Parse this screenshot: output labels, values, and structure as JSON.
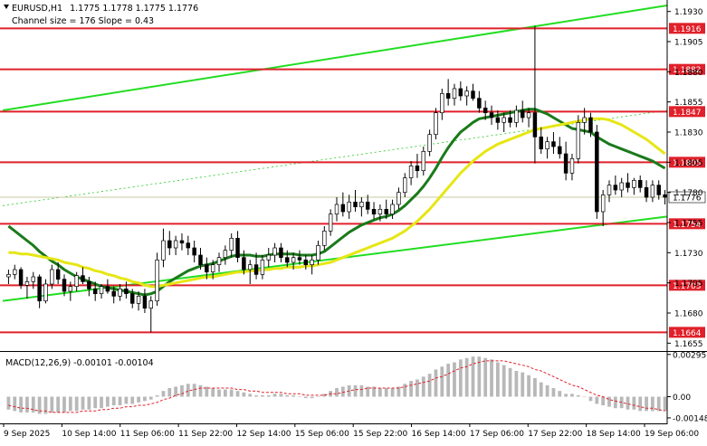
{
  "chart_data": {
    "type": "candlestick",
    "header": {
      "title": "EURUSD,H1",
      "ohlc": "1.1775 1.1778 1.1775 1.1776",
      "channel_info": "Channel size = 176 Slope = 0.43"
    },
    "price_axis": {
      "range": [
        1.165,
        1.1938
      ],
      "ticks": [
        "1.1930",
        "1.1905",
        "1.1880",
        "1.1855",
        "1.1830",
        "1.1805",
        "1.1780",
        "1.1755",
        "1.1730",
        "1.1705",
        "1.1680",
        "1.1655"
      ]
    },
    "current_price": {
      "label": "1.1776",
      "value": 1.1776
    },
    "levels": [
      {
        "label": "1.1916",
        "value": 1.1916
      },
      {
        "label": "1.1882",
        "value": 1.1882
      },
      {
        "label": "1.1847",
        "value": 1.1847
      },
      {
        "label": "1.1805",
        "value": 1.1805
      },
      {
        "label": "1.1754",
        "value": 1.1754
      },
      {
        "label": "1.1703",
        "value": 1.1703
      },
      {
        "label": "1.1664",
        "value": 1.1664
      }
    ],
    "time_labels": [
      "9 Sep 2025",
      "10 Sep 14:00",
      "11 Sep 06:00",
      "11 Sep 22:00",
      "12 Sep 14:00",
      "15 Sep 06:00",
      "15 Sep 22:00",
      "16 Sep 14:00",
      "17 Sep 06:00",
      "17 Sep 22:00",
      "18 Sep 14:00",
      "19 Sep 06:00"
    ],
    "candles": [
      [
        1.171,
        1.1716,
        1.1704,
        1.1712
      ],
      [
        1.1712,
        1.172,
        1.1708,
        1.1716
      ],
      [
        1.1716,
        1.1718,
        1.17,
        1.1703
      ],
      [
        1.1703,
        1.171,
        1.1692,
        1.1706
      ],
      [
        1.1706,
        1.1714,
        1.17,
        1.171
      ],
      [
        1.171,
        1.1712,
        1.1684,
        1.169
      ],
      [
        1.169,
        1.1708,
        1.1688,
        1.1704
      ],
      [
        1.1704,
        1.172,
        1.17,
        1.1716
      ],
      [
        1.1716,
        1.1722,
        1.1704,
        1.1708
      ],
      [
        1.1708,
        1.1712,
        1.1694,
        1.1698
      ],
      [
        1.1698,
        1.1706,
        1.169,
        1.1702
      ],
      [
        1.1702,
        1.1714,
        1.1698,
        1.1711
      ],
      [
        1.1711,
        1.1718,
        1.1704,
        1.1706
      ],
      [
        1.1706,
        1.171,
        1.1694,
        1.17
      ],
      [
        1.17,
        1.1706,
        1.169,
        1.1696
      ],
      [
        1.1696,
        1.1704,
        1.1692,
        1.1702
      ],
      [
        1.1702,
        1.1708,
        1.1696,
        1.1698
      ],
      [
        1.1698,
        1.1702,
        1.1688,
        1.1694
      ],
      [
        1.1694,
        1.1704,
        1.169,
        1.17
      ],
      [
        1.17,
        1.1706,
        1.1692,
        1.1696
      ],
      [
        1.1696,
        1.17,
        1.1684,
        1.1688
      ],
      [
        1.1688,
        1.1698,
        1.1682,
        1.1694
      ],
      [
        1.1694,
        1.17,
        1.168,
        1.1684
      ],
      [
        1.1684,
        1.1694,
        1.1664,
        1.169
      ],
      [
        1.169,
        1.173,
        1.1686,
        1.1724
      ],
      [
        1.1724,
        1.175,
        1.1718,
        1.174
      ],
      [
        1.174,
        1.1748,
        1.1728,
        1.1734
      ],
      [
        1.1734,
        1.1744,
        1.1728,
        1.174
      ],
      [
        1.174,
        1.1746,
        1.1732,
        1.1738
      ],
      [
        1.1738,
        1.1744,
        1.1728,
        1.1734
      ],
      [
        1.1734,
        1.174,
        1.1722,
        1.1728
      ],
      [
        1.1728,
        1.1734,
        1.1716,
        1.172
      ],
      [
        1.172,
        1.1726,
        1.1708,
        1.1714
      ],
      [
        1.1714,
        1.1724,
        1.1708,
        1.172
      ],
      [
        1.172,
        1.173,
        1.1714,
        1.1726
      ],
      [
        1.1726,
        1.1736,
        1.172,
        1.1732
      ],
      [
        1.1732,
        1.1746,
        1.1726,
        1.1742
      ],
      [
        1.1742,
        1.1748,
        1.1722,
        1.1726
      ],
      [
        1.1726,
        1.1732,
        1.1712,
        1.1716
      ],
      [
        1.1716,
        1.1724,
        1.1704,
        1.172
      ],
      [
        1.172,
        1.173,
        1.1708,
        1.1712
      ],
      [
        1.1712,
        1.1728,
        1.1708,
        1.1724
      ],
      [
        1.1724,
        1.1734,
        1.1718,
        1.1728
      ],
      [
        1.1728,
        1.1738,
        1.1722,
        1.1734
      ],
      [
        1.1734,
        1.1738,
        1.1722,
        1.1726
      ],
      [
        1.1726,
        1.1732,
        1.1718,
        1.1722
      ],
      [
        1.1722,
        1.173,
        1.1716,
        1.1726
      ],
      [
        1.1726,
        1.1732,
        1.172,
        1.1724
      ],
      [
        1.1724,
        1.1728,
        1.1716,
        1.172
      ],
      [
        1.172,
        1.1728,
        1.1712,
        1.1724
      ],
      [
        1.1724,
        1.174,
        1.172,
        1.1736
      ],
      [
        1.1736,
        1.1752,
        1.1732,
        1.1748
      ],
      [
        1.1748,
        1.1766,
        1.1744,
        1.1762
      ],
      [
        1.1762,
        1.1776,
        1.1756,
        1.177
      ],
      [
        1.177,
        1.178,
        1.176,
        1.1764
      ],
      [
        1.1764,
        1.1778,
        1.1758,
        1.1772
      ],
      [
        1.1772,
        1.1782,
        1.1764,
        1.1768
      ],
      [
        1.1768,
        1.1776,
        1.176,
        1.1772
      ],
      [
        1.1772,
        1.1778,
        1.1762,
        1.1766
      ],
      [
        1.1766,
        1.1772,
        1.1758,
        1.1762
      ],
      [
        1.1762,
        1.177,
        1.1756,
        1.1766
      ],
      [
        1.1766,
        1.1774,
        1.1758,
        1.1762
      ],
      [
        1.1762,
        1.1774,
        1.1758,
        1.177
      ],
      [
        1.177,
        1.1784,
        1.1766,
        1.178
      ],
      [
        1.178,
        1.1796,
        1.1776,
        1.1792
      ],
      [
        1.1792,
        1.1806,
        1.1786,
        1.1802
      ],
      [
        1.1802,
        1.1812,
        1.1792,
        1.1798
      ],
      [
        1.1798,
        1.1818,
        1.1794,
        1.1814
      ],
      [
        1.1814,
        1.1832,
        1.181,
        1.1828
      ],
      [
        1.1828,
        1.185,
        1.1824,
        1.1846
      ],
      [
        1.1846,
        1.1866,
        1.184,
        1.1862
      ],
      [
        1.1862,
        1.1874,
        1.1852,
        1.1858
      ],
      [
        1.1858,
        1.187,
        1.1852,
        1.1866
      ],
      [
        1.1866,
        1.1872,
        1.1856,
        1.186
      ],
      [
        1.186,
        1.1868,
        1.1852,
        1.1864
      ],
      [
        1.1864,
        1.187,
        1.1856,
        1.1858
      ],
      [
        1.1858,
        1.1864,
        1.1846,
        1.185
      ],
      [
        1.185,
        1.1856,
        1.184,
        1.1846
      ],
      [
        1.1846,
        1.1852,
        1.1836,
        1.1842
      ],
      [
        1.1842,
        1.1848,
        1.1832,
        1.1838
      ],
      [
        1.1838,
        1.1846,
        1.183,
        1.1842
      ],
      [
        1.1842,
        1.1848,
        1.1834,
        1.1838
      ],
      [
        1.1838,
        1.1852,
        1.1834,
        1.1848
      ],
      [
        1.1848,
        1.1856,
        1.1838,
        1.1842
      ],
      [
        1.1842,
        1.185,
        1.1834,
        1.1846
      ],
      [
        1.1846,
        1.1918,
        1.1804,
        1.1826
      ],
      [
        1.1826,
        1.1834,
        1.1812,
        1.1816
      ],
      [
        1.1816,
        1.1826,
        1.1808,
        1.1822
      ],
      [
        1.1822,
        1.183,
        1.1812,
        1.1818
      ],
      [
        1.1818,
        1.1826,
        1.1808,
        1.1812
      ],
      [
        1.1812,
        1.1822,
        1.179,
        1.1796
      ],
      [
        1.1796,
        1.1812,
        1.179,
        1.1808
      ],
      [
        1.1808,
        1.1844,
        1.1804,
        1.1838
      ],
      [
        1.1838,
        1.185,
        1.1828,
        1.1842
      ],
      [
        1.1842,
        1.1846,
        1.1826,
        1.183
      ],
      [
        1.183,
        1.1836,
        1.1758,
        1.1764
      ],
      [
        1.1764,
        1.1782,
        1.1752,
        1.1778
      ],
      [
        1.1778,
        1.179,
        1.1772,
        1.1786
      ],
      [
        1.1786,
        1.1794,
        1.1778,
        1.1782
      ],
      [
        1.1782,
        1.1792,
        1.1776,
        1.1788
      ],
      [
        1.1788,
        1.1796,
        1.178,
        1.1784
      ],
      [
        1.1784,
        1.1792,
        1.1778,
        1.179
      ],
      [
        1.179,
        1.1794,
        1.178,
        1.1784
      ],
      [
        1.1784,
        1.179,
        1.1772,
        1.1776
      ],
      [
        1.1776,
        1.179,
        1.1772,
        1.1786
      ],
      [
        1.1786,
        1.179,
        1.1774,
        1.1778
      ],
      [
        1.1778,
        1.1782,
        1.177,
        1.1776
      ]
    ],
    "series": [
      {
        "name": "",
        "color": "#1a7a1a",
        "values": [
          1.1752,
          1.1748,
          1.1744,
          1.174,
          1.1736,
          1.1731,
          1.1727,
          1.1723,
          1.172,
          1.1716,
          1.1713,
          1.171,
          1.1708,
          1.1706,
          1.1704,
          1.1702,
          1.1701,
          1.17,
          1.1699,
          1.1698,
          1.1697,
          1.1696,
          1.1695,
          1.1696,
          1.1698,
          1.1702,
          1.1706,
          1.1709,
          1.1712,
          1.1715,
          1.1717,
          1.1719,
          1.172,
          1.1721,
          1.1723,
          1.1725,
          1.1727,
          1.1728,
          1.1728,
          1.1728,
          1.1727,
          1.1727,
          1.1728,
          1.1729,
          1.1729,
          1.1729,
          1.1729,
          1.1728,
          1.1728,
          1.1728,
          1.1729,
          1.1731,
          1.1735,
          1.1739,
          1.1743,
          1.1747,
          1.175,
          1.1753,
          1.1755,
          1.1757,
          1.1759,
          1.176,
          1.1762,
          1.1765,
          1.1769,
          1.1774,
          1.1779,
          1.1785,
          1.1792,
          1.18,
          1.1809,
          1.1817,
          1.1824,
          1.183,
          1.1834,
          1.1838,
          1.1841,
          1.1842,
          1.1843,
          1.1844,
          1.1845,
          1.1846,
          1.1847,
          1.1848,
          1.1849,
          1.1849,
          1.1847,
          1.1845,
          1.1842,
          1.1839,
          1.1836,
          1.1833,
          1.1832,
          1.1831,
          1.183,
          1.1826,
          1.1823,
          1.182,
          1.1818,
          1.1816,
          1.1814,
          1.1812,
          1.181,
          1.1808,
          1.1806,
          1.1803,
          1.18
        ]
      },
      {
        "name": "",
        "color": "#e6e614",
        "values": [
          1.173,
          1.173,
          1.1729,
          1.1729,
          1.1728,
          1.1727,
          1.1726,
          1.1725,
          1.1724,
          1.1722,
          1.1721,
          1.172,
          1.1718,
          1.1717,
          1.1715,
          1.1714,
          1.1712,
          1.1711,
          1.1709,
          1.1708,
          1.1706,
          1.1705,
          1.1703,
          1.1702,
          1.1702,
          1.1703,
          1.1704,
          1.1705,
          1.1706,
          1.1707,
          1.1708,
          1.1709,
          1.171,
          1.171,
          1.1711,
          1.1712,
          1.1713,
          1.1714,
          1.1714,
          1.1715,
          1.1715,
          1.1716,
          1.1716,
          1.1717,
          1.1717,
          1.1718,
          1.1718,
          1.1718,
          1.1719,
          1.1719,
          1.172,
          1.1721,
          1.1722,
          1.1724,
          1.1726,
          1.1728,
          1.173,
          1.1732,
          1.1734,
          1.1736,
          1.1738,
          1.174,
          1.1742,
          1.1745,
          1.1748,
          1.1752,
          1.1756,
          1.1761,
          1.1766,
          1.1772,
          1.1778,
          1.1784,
          1.179,
          1.1796,
          1.1801,
          1.1806,
          1.181,
          1.1814,
          1.1817,
          1.182,
          1.1822,
          1.1824,
          1.1826,
          1.1828,
          1.183,
          1.1832,
          1.1833,
          1.1834,
          1.1835,
          1.1836,
          1.1837,
          1.1838,
          1.1839,
          1.184,
          1.1841,
          1.1841,
          1.1841,
          1.184,
          1.1838,
          1.1836,
          1.1833,
          1.183,
          1.1827,
          1.1824,
          1.182,
          1.1816,
          1.1812
        ]
      }
    ],
    "macd": {
      "label": "MACD(12,26,9) -0.00101 -0.00104",
      "range": [
        -0.0018,
        0.003
      ],
      "ticks": [
        "0.00295",
        "0.00",
        "-0.00148"
      ],
      "histogram": [
        -0.0009,
        -0.001,
        -0.0011,
        -0.0011,
        -0.0011,
        -0.0012,
        -0.0012,
        -0.0011,
        -0.0011,
        -0.0011,
        -0.001,
        -0.001,
        -0.0009,
        -0.0009,
        -0.0008,
        -0.0008,
        -0.0007,
        -0.0006,
        -0.0006,
        -0.0005,
        -0.0005,
        -0.0004,
        -0.0003,
        -0.0002,
        0.0001,
        0.0004,
        0.0006,
        0.0007,
        0.0008,
        0.0009,
        0.0009,
        0.0008,
        0.0007,
        0.0006,
        0.0005,
        0.0005,
        0.0005,
        0.0004,
        0.0003,
        0.0002,
        0.0001,
        0.0001,
        0.0001,
        0.0002,
        0.0002,
        0.0001,
        0.0001,
        0.0,
        -0.0001,
        -0.0001,
        0.0,
        0.0002,
        0.0004,
        0.0006,
        0.0007,
        0.0008,
        0.0008,
        0.0008,
        0.0007,
        0.0007,
        0.0006,
        0.0006,
        0.0006,
        0.0007,
        0.0009,
        0.0011,
        0.0012,
        0.0014,
        0.0016,
        0.0019,
        0.0021,
        0.0023,
        0.0024,
        0.0026,
        0.0027,
        0.0028,
        0.0028,
        0.0027,
        0.0026,
        0.0024,
        0.0022,
        0.002,
        0.0018,
        0.0017,
        0.0015,
        0.0013,
        0.001,
        0.0008,
        0.0006,
        0.0004,
        0.0002,
        0.0002,
        0.0001,
        0.0,
        -0.0003,
        -0.0005,
        -0.0006,
        -0.0007,
        -0.0008,
        -0.0008,
        -0.0009,
        -0.0009,
        -0.001,
        -0.001,
        -0.001,
        -0.001,
        -0.001
      ],
      "signal": [
        -0.0006,
        -0.0007,
        -0.0008,
        -0.0008,
        -0.0009,
        -0.001,
        -0.001,
        -0.0011,
        -0.0011,
        -0.0011,
        -0.0011,
        -0.0011,
        -0.001,
        -0.001,
        -0.001,
        -0.0009,
        -0.0009,
        -0.0008,
        -0.0008,
        -0.0007,
        -0.0007,
        -0.0006,
        -0.0006,
        -0.0005,
        -0.0004,
        -0.0002,
        -0.0001,
        0.0001,
        0.0002,
        0.0004,
        0.0005,
        0.0006,
        0.0006,
        0.0006,
        0.0006,
        0.0006,
        0.0006,
        0.0005,
        0.0005,
        0.0004,
        0.0004,
        0.0003,
        0.0003,
        0.0003,
        0.0003,
        0.0002,
        0.0002,
        0.0002,
        0.0001,
        0.0001,
        0.0001,
        0.0001,
        0.0002,
        0.0002,
        0.0003,
        0.0004,
        0.0005,
        0.0005,
        0.0006,
        0.0006,
        0.0006,
        0.0006,
        0.0006,
        0.0006,
        0.0007,
        0.0008,
        0.0009,
        0.001,
        0.0011,
        0.0013,
        0.0014,
        0.0016,
        0.0018,
        0.002,
        0.0021,
        0.0023,
        0.0024,
        0.0025,
        0.0025,
        0.0025,
        0.0025,
        0.0024,
        0.0023,
        0.0022,
        0.0021,
        0.0019,
        0.0018,
        0.0016,
        0.0014,
        0.0012,
        0.001,
        0.0008,
        0.0007,
        0.0005,
        0.0003,
        0.0001,
        0.0,
        -0.0002,
        -0.0003,
        -0.0004,
        -0.0005,
        -0.0006,
        -0.0007,
        -0.0008,
        -0.0008,
        -0.0009,
        -0.001
      ]
    }
  }
}
